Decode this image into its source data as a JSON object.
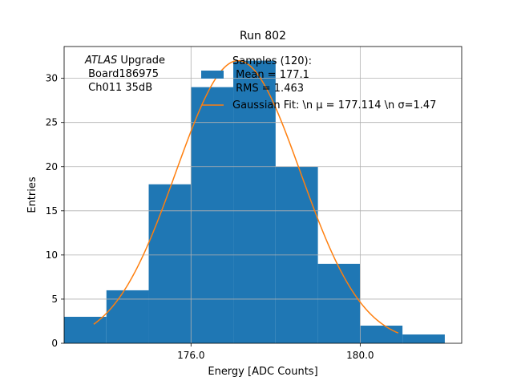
{
  "chart_data": {
    "type": "bar",
    "title": "Run 802",
    "xlabel": "Energy [ADC Counts]",
    "ylabel": "Entries",
    "xlim": [
      173.0,
      182.4
    ],
    "ylim": [
      0,
      33.6
    ],
    "x_ticks": [
      176.0,
      180.0
    ],
    "x_tick_labels": [
      "176.0",
      "180.0"
    ],
    "y_ticks": [
      0,
      5,
      10,
      15,
      20,
      25,
      30
    ],
    "y_tick_labels": [
      "0",
      "5",
      "10",
      "15",
      "20",
      "25",
      "30"
    ],
    "grid": true,
    "bin_edges": [
      173.0,
      174.0,
      175.0,
      176.0,
      177.0,
      178.0,
      179.0,
      180.0,
      181.0,
      182.0
    ],
    "values": [
      3,
      6,
      18,
      29,
      32,
      20,
      9,
      2,
      1
    ],
    "fit": {
      "mean": 177.114,
      "sigma": 1.47,
      "amplitude": 32,
      "x_range": [
        173.7,
        180.9
      ]
    },
    "annotation": {
      "italic": "ATLAS",
      "line1_rest": " Upgrade",
      "line2": " Board186975",
      "line3": " Ch011 35dB"
    },
    "legend": {
      "position": "top-right",
      "histogram_lines": [
        "Samples (120):",
        " Mean = 177.1",
        " RMS = 1.463"
      ],
      "fit_label": "Gaussian Fit: \\n μ = 177.114 \\n σ=1.47"
    },
    "colors": {
      "bars": "#1f77b4",
      "fit": "#ff7f0e",
      "grid": "#b0b0b0"
    }
  }
}
